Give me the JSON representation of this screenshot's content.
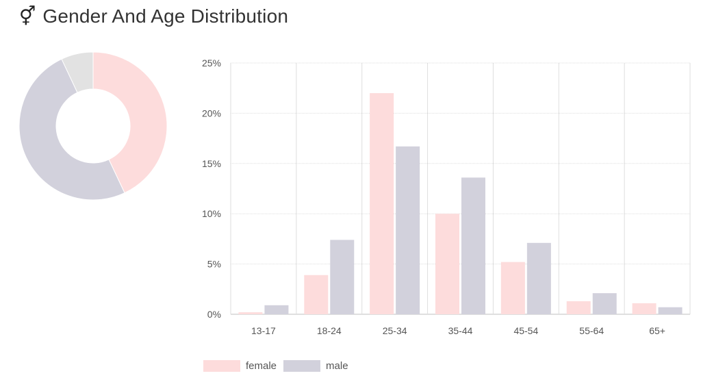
{
  "header": {
    "icon": "gender-icon",
    "icon_glyph": "⚥",
    "title": "Gender And Age Distribution"
  },
  "colors": {
    "female": "#fddcdc",
    "male": "#d2d1dc",
    "other": "#e2e2e2",
    "grid": "#dedede",
    "tick_text": "#555555"
  },
  "chart_data": [
    {
      "type": "pie",
      "variant": "donut",
      "slices": [
        {
          "name": "female",
          "value": 43
        },
        {
          "name": "male",
          "value": 50
        },
        {
          "name": "other",
          "value": 7
        }
      ]
    },
    {
      "type": "bar",
      "categories": [
        "13-17",
        "18-24",
        "25-34",
        "35-44",
        "45-54",
        "55-64",
        "65+"
      ],
      "series": [
        {
          "name": "female",
          "values": [
            0.2,
            3.9,
            22.0,
            10.0,
            5.2,
            1.3,
            1.1
          ]
        },
        {
          "name": "male",
          "values": [
            0.9,
            7.4,
            16.7,
            13.6,
            7.1,
            2.1,
            0.7
          ]
        }
      ],
      "ylim": [
        0,
        25
      ],
      "yticks": [
        "0%",
        "5%",
        "10%",
        "15%",
        "20%",
        "25%"
      ],
      "ytick_values": [
        0,
        5,
        10,
        15,
        20,
        25
      ],
      "grid": true,
      "legend": "bottom-left"
    }
  ]
}
